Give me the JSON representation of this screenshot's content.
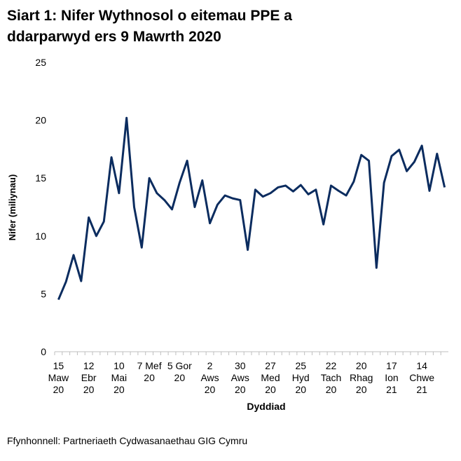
{
  "chart_data": {
    "type": "line",
    "title": "Siart 1: Nifer Wythnosol o eitemau PPE a ddarparwyd ers 9 Mawrth 2020",
    "x_label": "Dyddiad",
    "y_label": "Nifer (miliynau)",
    "source": "Ffynhonnell: Partneriaeth Cydwasanaethau GIG Cymru",
    "categories": [
      [
        "15",
        "Maw",
        "20"
      ],
      null,
      null,
      null,
      [
        "12",
        "Ebr",
        "20"
      ],
      null,
      null,
      null,
      [
        "10",
        "Mai",
        "20"
      ],
      null,
      null,
      null,
      [
        "7 Mef",
        "20"
      ],
      null,
      null,
      null,
      [
        "5 Gor",
        "20"
      ],
      null,
      null,
      null,
      [
        "2",
        "Aws",
        "20"
      ],
      null,
      null,
      null,
      [
        "30",
        "Aws",
        "20"
      ],
      null,
      null,
      null,
      [
        "27",
        "Med",
        "20"
      ],
      null,
      null,
      null,
      [
        "25",
        "Hyd",
        "20"
      ],
      null,
      null,
      null,
      [
        "22",
        "Tach",
        "20"
      ],
      null,
      null,
      null,
      [
        "20",
        "Rhag",
        "20"
      ],
      null,
      null,
      null,
      [
        "17",
        "Ion",
        "21"
      ],
      null,
      null,
      null,
      [
        "14",
        "Chwe",
        "21"
      ],
      null,
      null,
      null
    ],
    "series": [
      {
        "name": "Nifer",
        "color": "#0b2c5f",
        "values": [
          4.5,
          6.05,
          8.35,
          6.1,
          11.6,
          10.0,
          11.25,
          16.8,
          13.7,
          20.2,
          12.5,
          9.0,
          15.0,
          13.7,
          13.1,
          12.3,
          14.6,
          16.5,
          12.5,
          14.8,
          11.1,
          12.7,
          13.5,
          13.25,
          13.1,
          8.8,
          14.0,
          13.4,
          13.7,
          14.2,
          14.35,
          13.85,
          14.4,
          13.6,
          14.0,
          11.0,
          14.35,
          13.9,
          13.5,
          14.7,
          17.0,
          16.5,
          7.25,
          14.6,
          16.9,
          17.45,
          15.6,
          16.4,
          17.8,
          13.9,
          17.1,
          14.2
        ]
      }
    ],
    "ylim": [
      0,
      25
    ],
    "yticks": [
      0,
      5,
      10,
      15,
      20,
      25
    ],
    "grid": false
  }
}
